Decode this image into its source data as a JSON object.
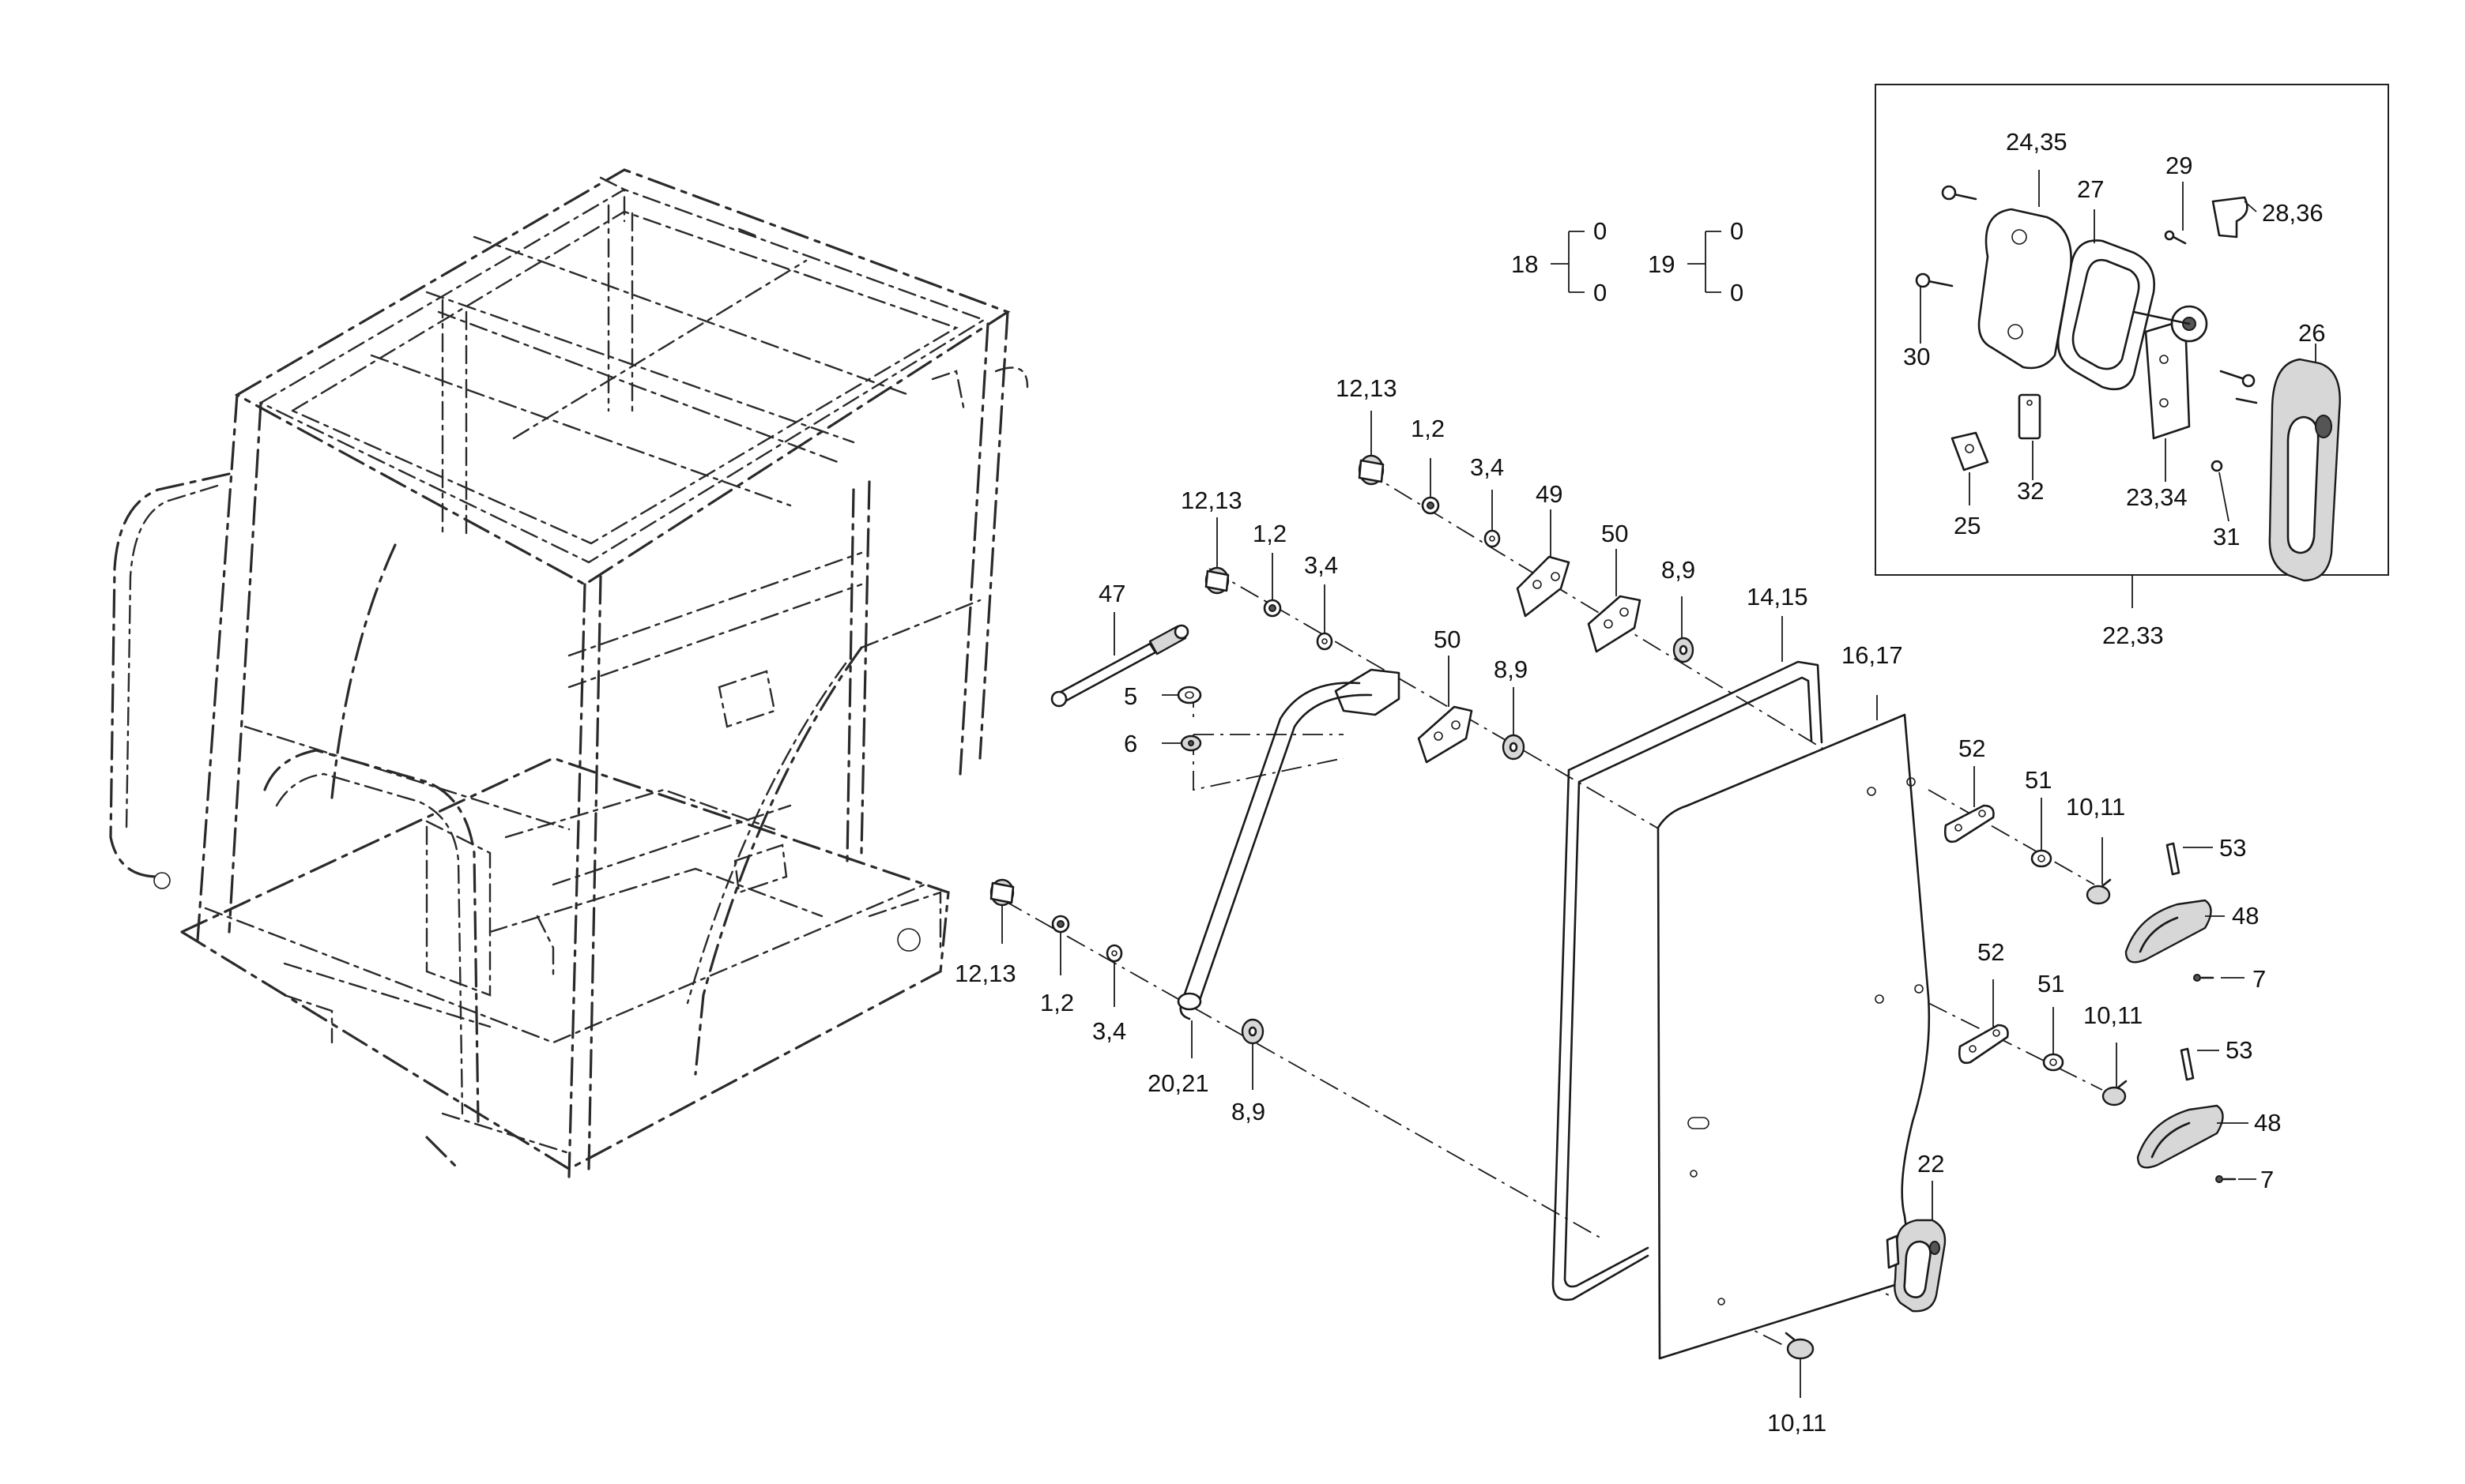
{
  "callouts": {
    "c_24_35": "24,35",
    "c_27": "27",
    "c_29": "29",
    "c_28_36": "28,36",
    "c_30": "30",
    "c_26": "26",
    "c_25": "25",
    "c_32": "32",
    "c_23_34": "23,34",
    "c_31": "31",
    "c_22_33": "22,33",
    "c_18": "18",
    "c_18_a": "0",
    "c_18_b": "0",
    "c_19": "19",
    "c_19_a": "0",
    "c_19_b": "0",
    "c_12_13_top": "12,13",
    "c_1_2_top": "1,2",
    "c_3_4_top": "3,4",
    "c_49": "49",
    "c_50_top": "50",
    "c_8_9_top": "8,9",
    "c_12_13_mid": "12,13",
    "c_1_2_mid": "1,2",
    "c_3_4_mid": "3,4",
    "c_47": "47",
    "c_5": "5",
    "c_6": "6",
    "c_50_mid": "50",
    "c_8_9_mid": "8,9",
    "c_14_15": "14,15",
    "c_16_17": "16,17",
    "c_52_top": "52",
    "c_51_top": "51",
    "c_10_11_top": "10,11",
    "c_53_top": "53",
    "c_48_top": "48",
    "c_7_top": "7",
    "c_52_bot": "52",
    "c_51_bot": "51",
    "c_10_11_mid": "10,11",
    "c_53_bot": "53",
    "c_48_bot": "48",
    "c_7_bot": "7",
    "c_12_13_low": "12,13",
    "c_1_2_low": "1,2",
    "c_3_4_low": "3,4",
    "c_20_21": "20,21",
    "c_8_9_low": "8,9",
    "c_22": "22",
    "c_10_11_bot": "10,11"
  }
}
